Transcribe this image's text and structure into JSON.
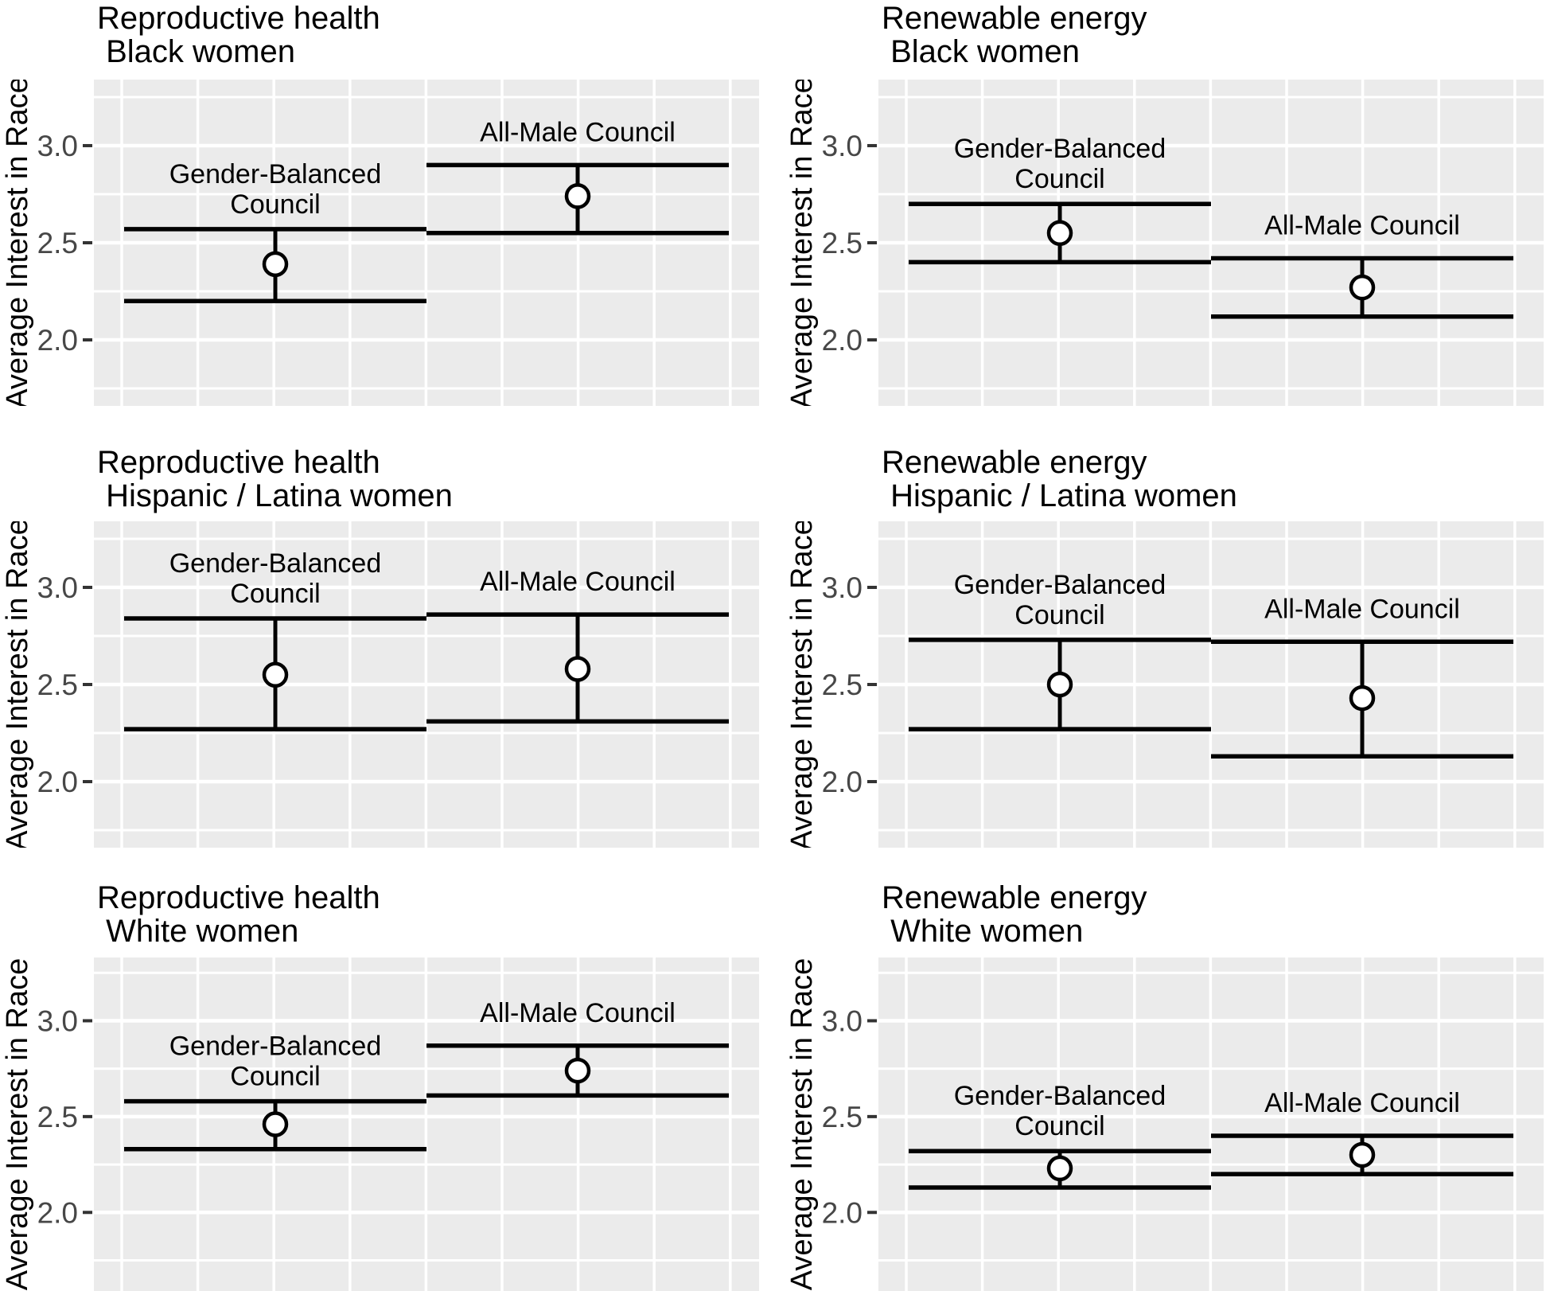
{
  "figure": {
    "y_axis_label": "Average Interest in Race",
    "y_tick_labels": [
      "3.0",
      "2.5",
      "2.0"
    ],
    "condition_labels": {
      "gender_balanced": [
        "Gender-Balanced",
        "Council"
      ],
      "all_male": [
        "All-Male Council"
      ]
    },
    "colors": {
      "panel_background": "#EBEBEB",
      "gridline": "#FFFFFF",
      "errorbar": "#000000",
      "point_fill": "#FFFFFF",
      "point_stroke": "#000000",
      "tick_mark": "#333333",
      "tick_text": "#474747",
      "title_text": "#000000"
    }
  },
  "chart_data": [
    {
      "type": "pointrange",
      "title": "Reproductive health",
      "subtitle": " Black women",
      "ylabel": "Average Interest in Race",
      "xlabel": "",
      "yticks": [
        3.0,
        2.5,
        2.0
      ],
      "ylim": [
        1.66,
        3.34
      ],
      "grid": true,
      "legend": "none",
      "categories": [
        "Gender-Balanced Council",
        "All-Male Council"
      ],
      "series": [
        {
          "name": "Gender-Balanced Council",
          "mean": 2.39,
          "ci_low": 2.2,
          "ci_high": 2.57
        },
        {
          "name": "All-Male Council",
          "mean": 2.74,
          "ci_low": 2.55,
          "ci_high": 2.9
        }
      ]
    },
    {
      "type": "pointrange",
      "title": "Renewable energy",
      "subtitle": " Black women",
      "ylabel": "Average Interest in Race",
      "xlabel": "",
      "yticks": [
        3.0,
        2.5,
        2.0
      ],
      "ylim": [
        1.66,
        3.34
      ],
      "grid": true,
      "legend": "none",
      "categories": [
        "Gender-Balanced Council",
        "All-Male Council"
      ],
      "series": [
        {
          "name": "Gender-Balanced Council",
          "mean": 2.55,
          "ci_low": 2.4,
          "ci_high": 2.7
        },
        {
          "name": "All-Male Council",
          "mean": 2.27,
          "ci_low": 2.12,
          "ci_high": 2.42
        }
      ]
    },
    {
      "type": "pointrange",
      "title": "Reproductive health",
      "subtitle": " Hispanic / Latina women",
      "ylabel": "Average Interest in Race",
      "xlabel": "",
      "yticks": [
        3.0,
        2.5,
        2.0
      ],
      "ylim": [
        1.66,
        3.34
      ],
      "grid": true,
      "legend": "none",
      "categories": [
        "Gender-Balanced Council",
        "All-Male Council"
      ],
      "series": [
        {
          "name": "Gender-Balanced Council",
          "mean": 2.55,
          "ci_low": 2.27,
          "ci_high": 2.84
        },
        {
          "name": "All-Male Council",
          "mean": 2.58,
          "ci_low": 2.31,
          "ci_high": 2.86
        }
      ]
    },
    {
      "type": "pointrange",
      "title": "Renewable energy",
      "subtitle": " Hispanic / Latina women",
      "ylabel": "Average Interest in Race",
      "xlabel": "",
      "yticks": [
        3.0,
        2.5,
        2.0
      ],
      "ylim": [
        1.66,
        3.34
      ],
      "grid": true,
      "legend": "none",
      "categories": [
        "Gender-Balanced Council",
        "All-Male Council"
      ],
      "series": [
        {
          "name": "Gender-Balanced Council",
          "mean": 2.5,
          "ci_low": 2.27,
          "ci_high": 2.73
        },
        {
          "name": "All-Male Council",
          "mean": 2.43,
          "ci_low": 2.13,
          "ci_high": 2.72
        }
      ]
    },
    {
      "type": "pointrange",
      "title": "Reproductive health",
      "subtitle": " White women",
      "ylabel": "Average Interest in Race",
      "xlabel": "",
      "yticks": [
        3.0,
        2.5,
        2.0
      ],
      "ylim": [
        1.59,
        3.33
      ],
      "grid": true,
      "legend": "none",
      "categories": [
        "Gender-Balanced Council",
        "All-Male Council"
      ],
      "series": [
        {
          "name": "Gender-Balanced Council",
          "mean": 2.46,
          "ci_low": 2.33,
          "ci_high": 2.58
        },
        {
          "name": "All-Male Council",
          "mean": 2.74,
          "ci_low": 2.61,
          "ci_high": 2.87
        }
      ]
    },
    {
      "type": "pointrange",
      "title": "Renewable energy",
      "subtitle": " White women",
      "ylabel": "Average Interest in Race",
      "xlabel": "",
      "yticks": [
        3.0,
        2.5,
        2.0
      ],
      "ylim": [
        1.59,
        3.33
      ],
      "grid": true,
      "legend": "none",
      "categories": [
        "Gender-Balanced Council",
        "All-Male Council"
      ],
      "series": [
        {
          "name": "Gender-Balanced Council",
          "mean": 2.23,
          "ci_low": 2.13,
          "ci_high": 2.32
        },
        {
          "name": "All-Male Council",
          "mean": 2.3,
          "ci_low": 2.2,
          "ci_high": 2.4
        }
      ]
    }
  ]
}
